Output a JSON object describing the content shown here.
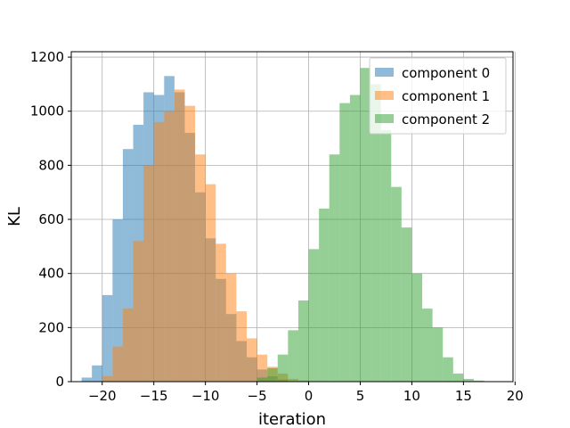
{
  "chart_data": {
    "type": "bar",
    "title": "",
    "xlabel": "iteration",
    "ylabel": "KL",
    "xlim": [
      -23.0,
      19.8
    ],
    "ylim": [
      0,
      1220
    ],
    "xticks": [
      -20,
      -15,
      -10,
      -5,
      0,
      5,
      10,
      15,
      20
    ],
    "yticks": [
      0,
      200,
      400,
      600,
      800,
      1000,
      1200
    ],
    "grid": true,
    "legend_position": "top-right",
    "bin_width": 1.0,
    "series": [
      {
        "name": "component 0",
        "color": "#1f77b4",
        "opacity": 0.5,
        "bin_start": -22,
        "values": [
          15,
          60,
          320,
          600,
          860,
          950,
          1070,
          1060,
          1130,
          1070,
          920,
          700,
          530,
          380,
          250,
          150,
          90,
          45,
          20,
          8
        ]
      },
      {
        "name": "component 1",
        "color": "#ff7f0e",
        "opacity": 0.5,
        "bin_start": -20,
        "values": [
          20,
          130,
          270,
          520,
          800,
          960,
          1000,
          1080,
          1020,
          840,
          730,
          510,
          400,
          260,
          160,
          100,
          55,
          30,
          10,
          4
        ]
      },
      {
        "name": "component 2",
        "color": "#2ca02c",
        "opacity": 0.5,
        "bin_start": -5,
        "values": [
          15,
          50,
          100,
          190,
          300,
          490,
          640,
          840,
          1030,
          1060,
          1160,
          1100,
          930,
          720,
          570,
          400,
          270,
          200,
          90,
          30,
          10,
          4
        ]
      }
    ]
  }
}
